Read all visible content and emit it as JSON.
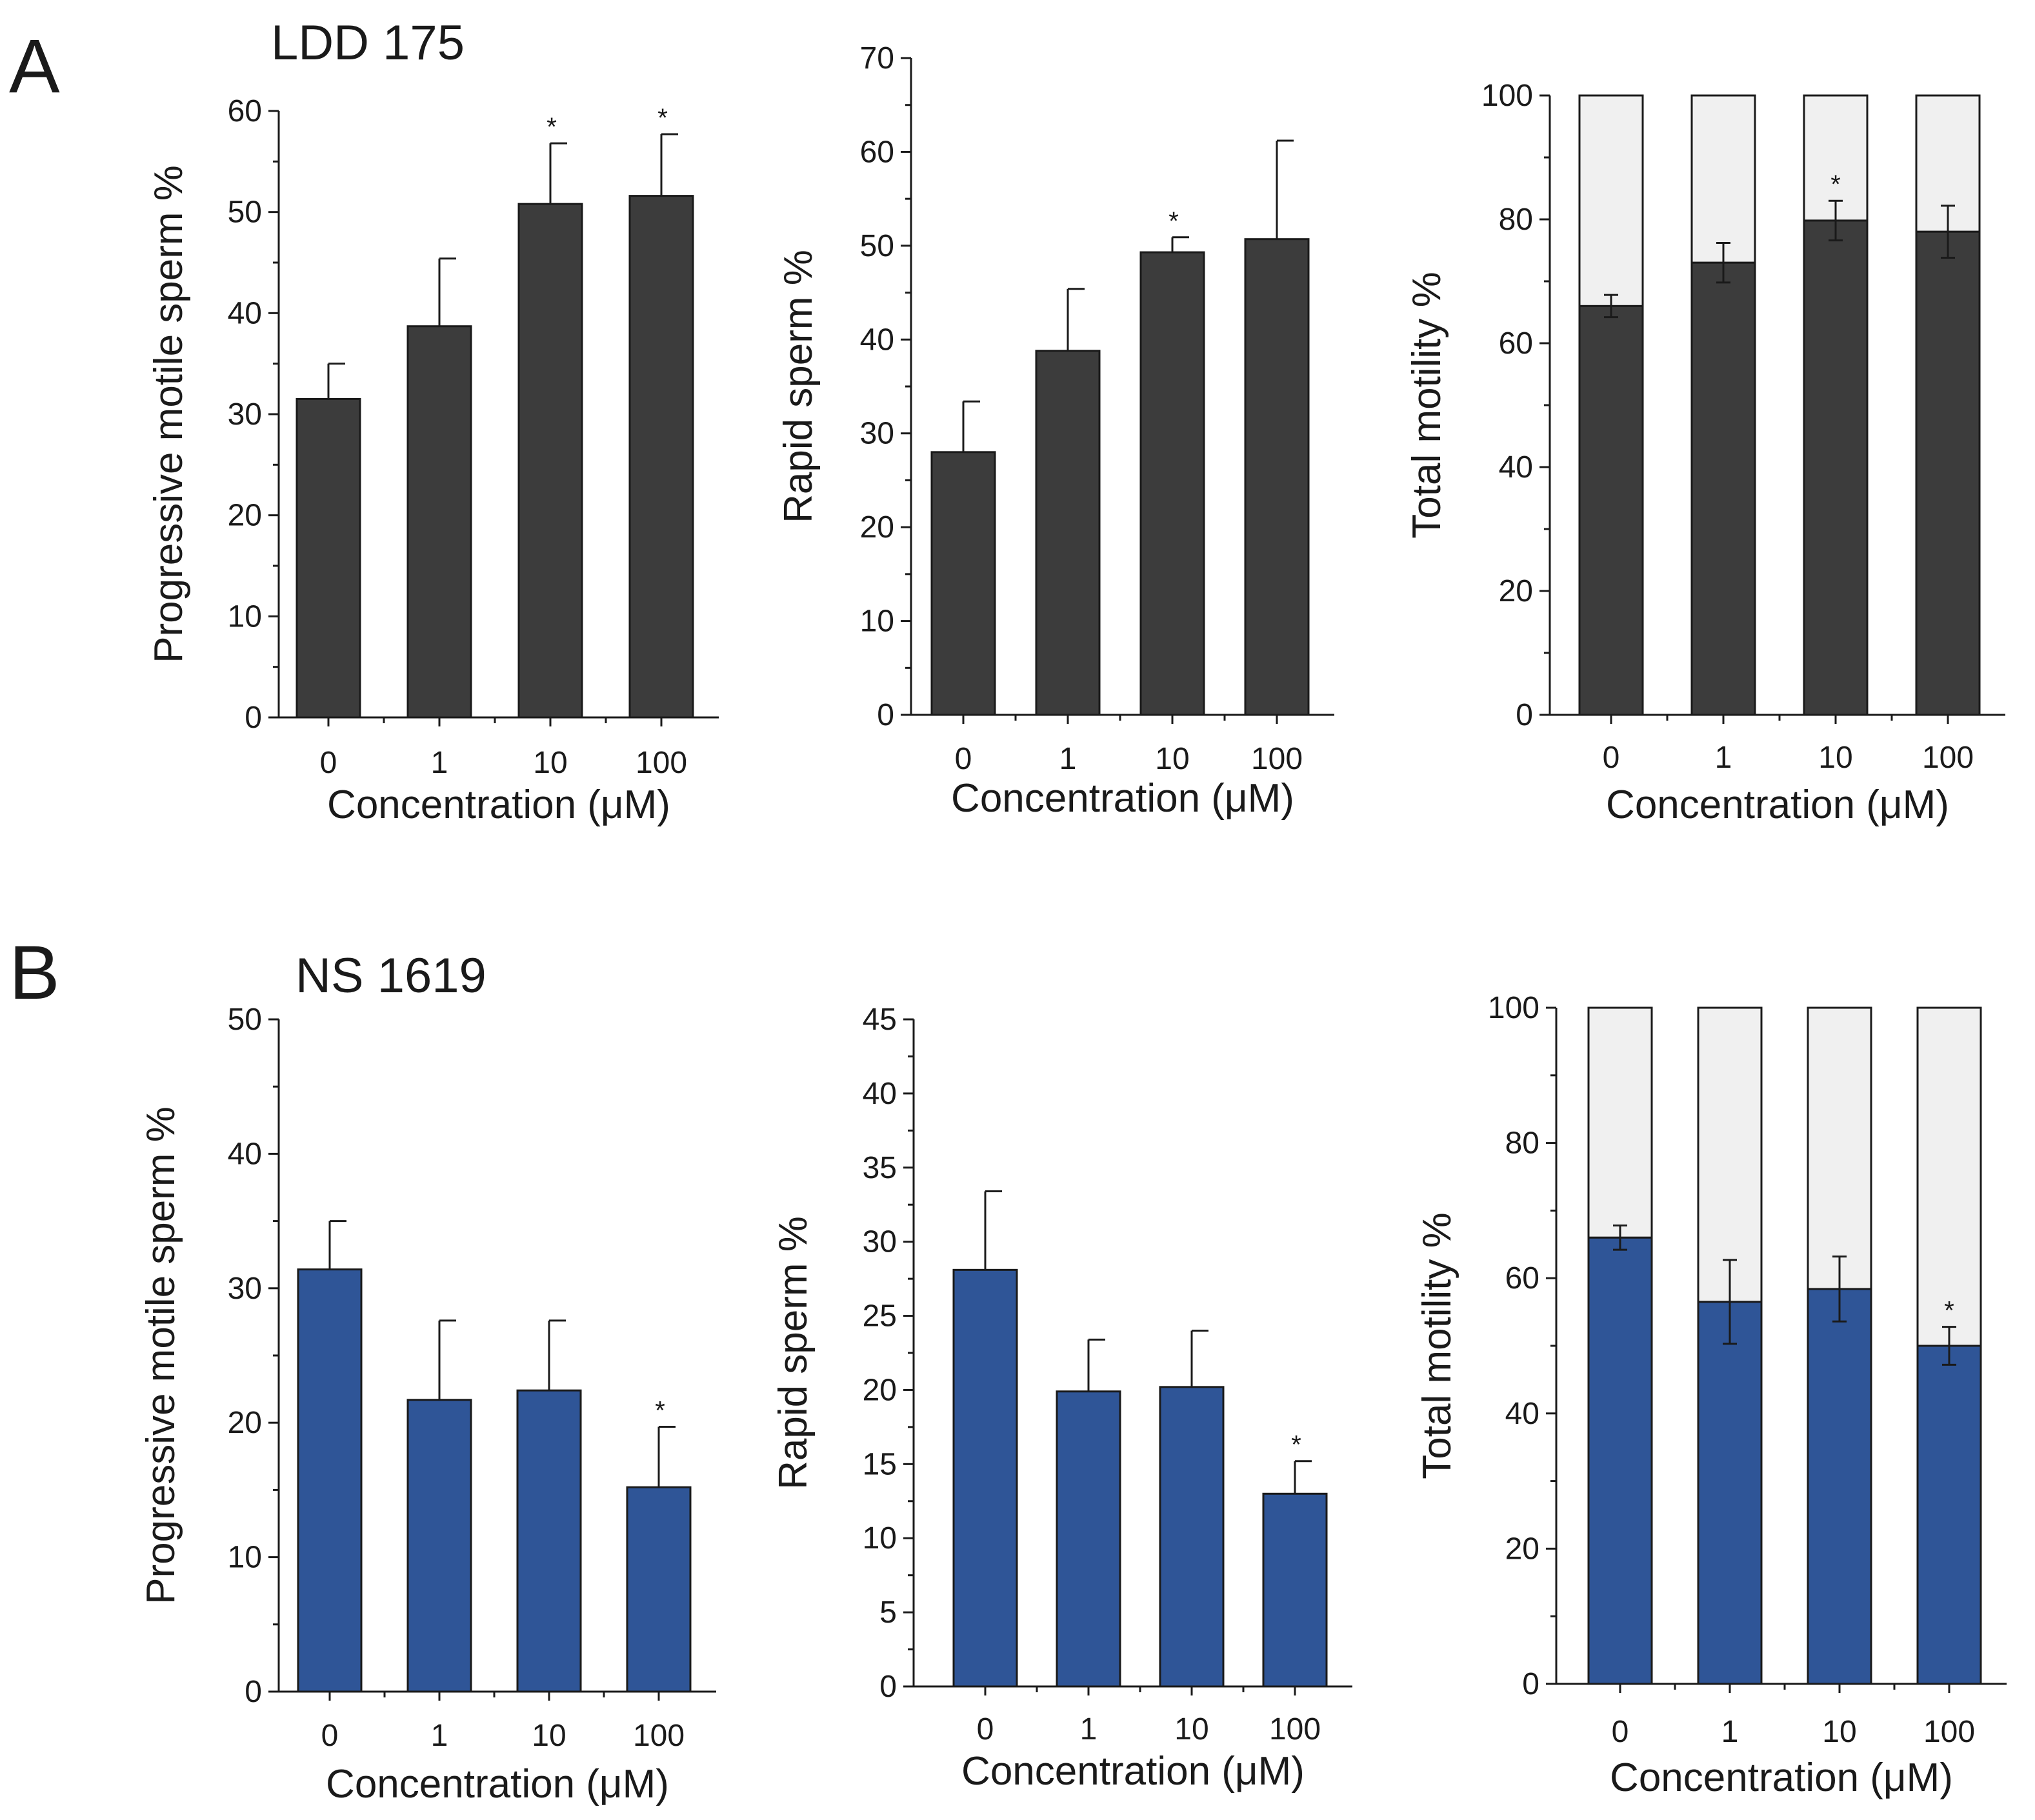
{
  "colors": {
    "panel_a_bar": "#3c3c3c",
    "panel_b_bar": "#2f5597",
    "stack_rest": "#f0f0f0",
    "axis": "#1a1a1a"
  },
  "panels": [
    {
      "letter": "A",
      "title": "LDD 175"
    },
    {
      "letter": "B",
      "title": "NS 1619"
    }
  ],
  "chart_data": [
    {
      "type": "bar",
      "panel": "A",
      "title": "LDD 175",
      "categories": [
        "0",
        "1",
        "10",
        "100"
      ],
      "values": [
        31.5,
        38.7,
        50.8,
        51.6
      ],
      "errors": [
        3.5,
        6.7,
        6.0,
        6.1
      ],
      "significance": [
        "",
        "",
        "*",
        "*"
      ],
      "xlabel": "Concentration (μM)",
      "ylabel": "Progressive motile sperm %",
      "ylim": [
        0,
        60
      ],
      "yticks": [
        "0",
        "10",
        "20",
        "30",
        "40",
        "50",
        "60"
      ],
      "grid": false
    },
    {
      "type": "bar",
      "panel": "A",
      "categories": [
        "0",
        "1",
        "10",
        "100"
      ],
      "values": [
        28.0,
        38.8,
        49.3,
        50.7
      ],
      "errors": [
        5.4,
        6.6,
        1.6,
        10.5
      ],
      "significance": [
        "",
        "",
        "*",
        ""
      ],
      "xlabel": "Concentration (μM)",
      "ylabel": "Rapid sperm %",
      "ylim": [
        0,
        70
      ],
      "yticks": [
        "0",
        "10",
        "20",
        "30",
        "40",
        "50",
        "60",
        "70"
      ],
      "grid": false
    },
    {
      "type": "bar",
      "stacked": true,
      "panel": "A",
      "categories": [
        "0",
        "1",
        "10",
        "100"
      ],
      "values": [
        66.0,
        73.0,
        79.8,
        78.0
      ],
      "total": 100,
      "errors": [
        1.8,
        3.2,
        3.2,
        4.2
      ],
      "significance": [
        "",
        "",
        "*",
        ""
      ],
      "xlabel": "Concentration (μM)",
      "ylabel": "Total motility %",
      "ylim": [
        0,
        100
      ],
      "yticks": [
        "0",
        "20",
        "40",
        "60",
        "80",
        "100"
      ],
      "grid": false
    },
    {
      "type": "bar",
      "panel": "B",
      "title": "NS 1619",
      "categories": [
        "0",
        "1",
        "10",
        "100"
      ],
      "values": [
        31.4,
        21.7,
        22.4,
        15.2
      ],
      "errors": [
        3.6,
        5.9,
        5.2,
        4.5
      ],
      "significance": [
        "",
        "",
        "",
        "*"
      ],
      "xlabel": "Concentration (μM)",
      "ylabel": "Progressive motile sperm %",
      "ylim": [
        0,
        50
      ],
      "yticks": [
        "0",
        "10",
        "20",
        "30",
        "40",
        "50"
      ],
      "grid": false
    },
    {
      "type": "bar",
      "panel": "B",
      "categories": [
        "0",
        "1",
        "10",
        "100"
      ],
      "values": [
        28.1,
        19.9,
        20.2,
        13.0
      ],
      "errors": [
        5.3,
        3.5,
        3.8,
        2.2
      ],
      "significance": [
        "",
        "",
        "",
        "*"
      ],
      "xlabel": "Concentration (μM)",
      "ylabel": "Rapid sperm %",
      "ylim": [
        0,
        45
      ],
      "yticks": [
        "0",
        "5",
        "10",
        "15",
        "20",
        "25",
        "30",
        "35",
        "40",
        "45"
      ],
      "grid": false
    },
    {
      "type": "bar",
      "stacked": true,
      "panel": "B",
      "categories": [
        "0",
        "1",
        "10",
        "100"
      ],
      "values": [
        66.0,
        56.5,
        58.4,
        50.0
      ],
      "total": 100,
      "errors": [
        1.8,
        6.2,
        4.8,
        2.8
      ],
      "significance": [
        "",
        "",
        "",
        "*"
      ],
      "xlabel": "Concentration (μM)",
      "ylabel": "Total motility  %",
      "ylim": [
        0,
        100
      ],
      "yticks": [
        "0",
        "20",
        "40",
        "60",
        "80",
        "100"
      ],
      "grid": false
    }
  ]
}
